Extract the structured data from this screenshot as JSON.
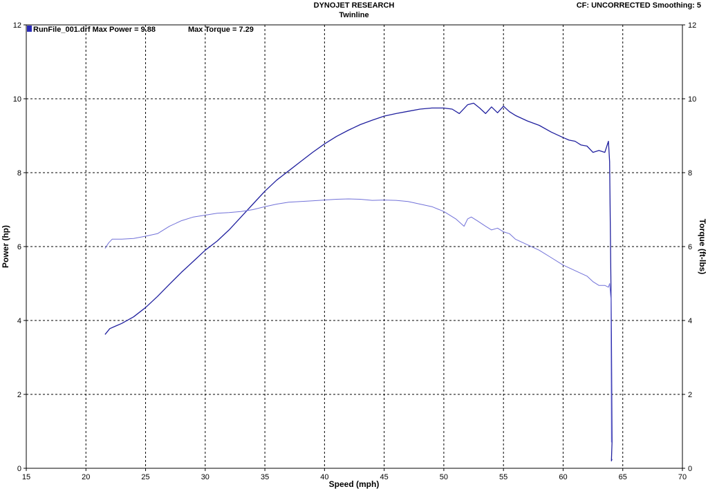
{
  "header": {
    "title": "DYNOJET RESEARCH",
    "subtitle": "Twinline",
    "cf_label": "CF: UNCORRECTED  Smoothing: 5"
  },
  "legend": {
    "run_label": "RunFile_001.drf Max Power = 9.88",
    "torque_label": "Max Torque = 7.29",
    "swatch_color": "#2b2bb8"
  },
  "chart_data": {
    "type": "line",
    "title": "DYNOJET RESEARCH",
    "subtitle": "Twinline",
    "xlabel": "Speed (mph)",
    "ylabel": "Power (hp)",
    "y2label": "Torque (ft-lbs)",
    "xlim": [
      15,
      70
    ],
    "ylim": [
      0,
      12
    ],
    "y2lim": [
      0,
      12
    ],
    "grid": true,
    "x_ticks": [
      15,
      20,
      25,
      30,
      35,
      40,
      45,
      50,
      55,
      60,
      65,
      70
    ],
    "y_ticks": [
      0,
      2,
      4,
      6,
      8,
      10,
      12
    ],
    "y2_ticks": [
      0,
      2,
      4,
      6,
      8,
      10,
      12
    ],
    "series": [
      {
        "name": "Power",
        "color": "#1f1f9e",
        "x": [
          21.6,
          22.0,
          22.5,
          23,
          24,
          25,
          26,
          27,
          28,
          29,
          30,
          31,
          32,
          33,
          34,
          35,
          36,
          37,
          38,
          39,
          40,
          41,
          42,
          43,
          44,
          45,
          46,
          47,
          48,
          49,
          50,
          50.7,
          51.3,
          52,
          52.5,
          53,
          53.5,
          54,
          54.5,
          55,
          55.5,
          56,
          57,
          58,
          59,
          60,
          60.5,
          61,
          61.5,
          62,
          62.5,
          63,
          63.5,
          63.8,
          63.9,
          64.0,
          64.05,
          64.1,
          64.05,
          64.1
        ],
        "y": [
          3.62,
          3.78,
          3.85,
          3.92,
          4.1,
          4.35,
          4.65,
          4.98,
          5.3,
          5.6,
          5.9,
          6.15,
          6.45,
          6.8,
          7.15,
          7.5,
          7.8,
          8.05,
          8.3,
          8.55,
          8.78,
          8.98,
          9.15,
          9.3,
          9.42,
          9.53,
          9.6,
          9.66,
          9.72,
          9.75,
          9.75,
          9.72,
          9.6,
          9.84,
          9.88,
          9.75,
          9.6,
          9.78,
          9.62,
          9.8,
          9.65,
          9.55,
          9.4,
          9.28,
          9.1,
          8.95,
          8.88,
          8.85,
          8.75,
          8.72,
          8.55,
          8.6,
          8.55,
          8.85,
          8.3,
          5.2,
          3.6,
          0.7,
          0.2,
          0.25
        ]
      },
      {
        "name": "Torque",
        "color": "#7070d8",
        "x": [
          21.6,
          21.9,
          22.2,
          23,
          24,
          25,
          26,
          27,
          28,
          29,
          30,
          31,
          32,
          33,
          34,
          35,
          36,
          37,
          38,
          39,
          40,
          41,
          42,
          43,
          44,
          45,
          46,
          47,
          48,
          49,
          50,
          51,
          51.7,
          52,
          52.3,
          52.8,
          53.5,
          54,
          54.5,
          55,
          55.5,
          56,
          57,
          58,
          59,
          60,
          61,
          62,
          62.5,
          63,
          63.5,
          63.8,
          63.9,
          64.0,
          64.05
        ],
        "y": [
          5.95,
          6.1,
          6.2,
          6.2,
          6.22,
          6.28,
          6.35,
          6.55,
          6.7,
          6.8,
          6.85,
          6.9,
          6.92,
          6.95,
          7.0,
          7.08,
          7.15,
          7.2,
          7.22,
          7.24,
          7.26,
          7.28,
          7.29,
          7.28,
          7.25,
          7.26,
          7.25,
          7.22,
          7.15,
          7.08,
          6.95,
          6.75,
          6.55,
          6.75,
          6.8,
          6.7,
          6.55,
          6.45,
          6.5,
          6.4,
          6.35,
          6.2,
          6.05,
          5.9,
          5.7,
          5.5,
          5.35,
          5.2,
          5.05,
          4.95,
          4.95,
          4.9,
          5.0,
          4.6,
          0.7
        ]
      }
    ]
  }
}
